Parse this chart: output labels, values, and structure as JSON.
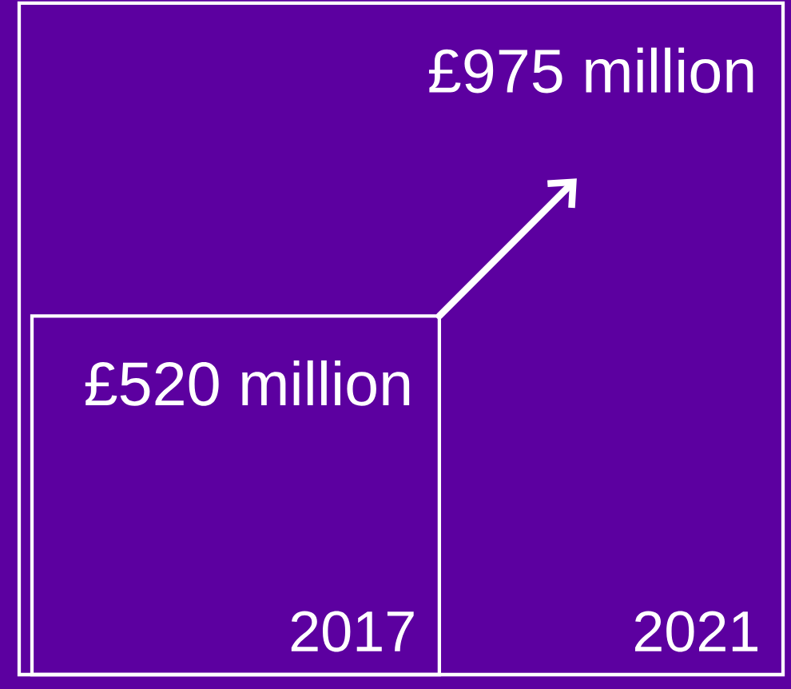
{
  "chart_data": {
    "type": "other",
    "categories": [
      "2017",
      "2021"
    ],
    "values": [
      520,
      975
    ],
    "value_labels": [
      "£520 million",
      "£975 million"
    ],
    "color": "#5c00a0"
  }
}
